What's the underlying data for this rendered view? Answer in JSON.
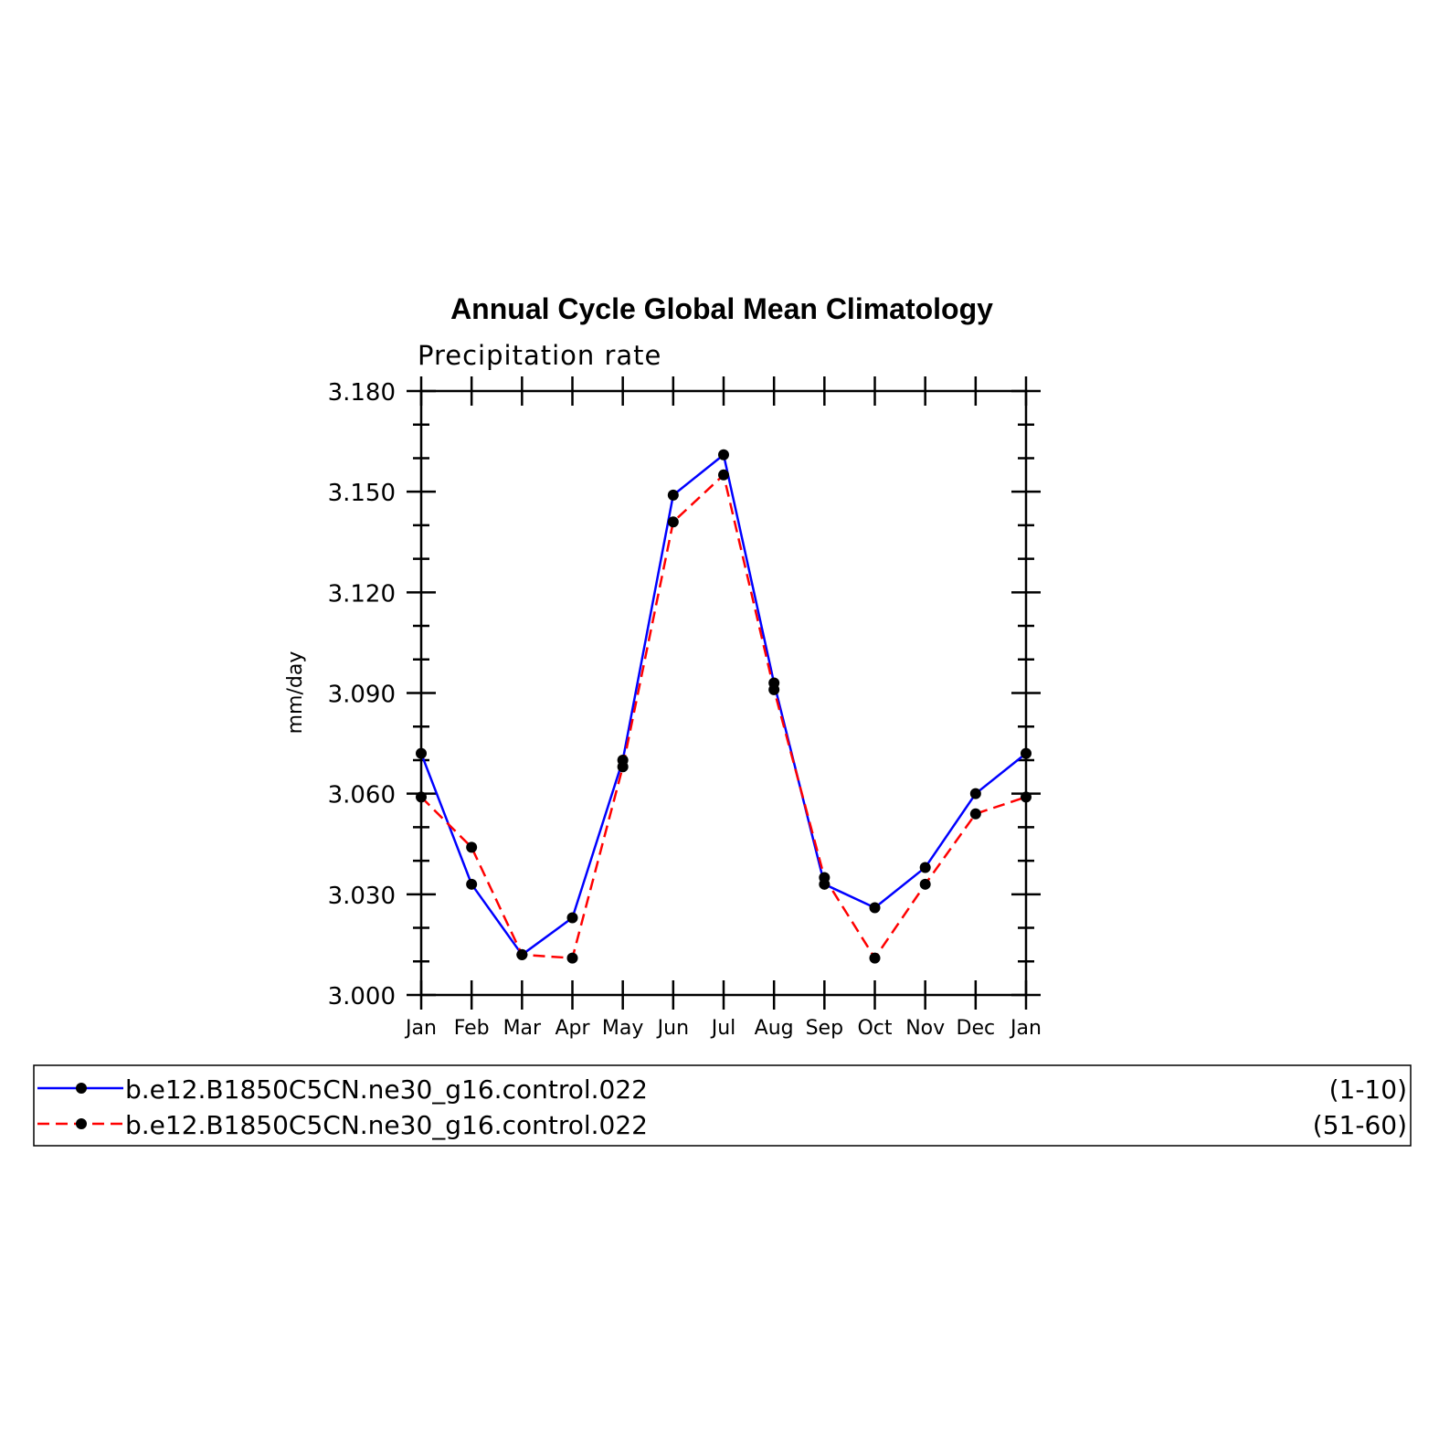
{
  "chart_data": {
    "type": "line",
    "title": "Annual Cycle Global Mean Climatology",
    "subtitle": "Precipitation rate",
    "xlabel": "",
    "ylabel": "mm/day",
    "categories": [
      "Jan",
      "Feb",
      "Mar",
      "Apr",
      "May",
      "Jun",
      "Jul",
      "Aug",
      "Sep",
      "Oct",
      "Nov",
      "Dec",
      "Jan"
    ],
    "ylim": [
      3.0,
      3.18
    ],
    "yticks": [
      "3.000",
      "3.030",
      "3.060",
      "3.090",
      "3.120",
      "3.150",
      "3.180"
    ],
    "grid": false,
    "legend_position": "bottom",
    "series": [
      {
        "name": "b.e12.B1850C5CN.ne30_g16.control.022",
        "years": "(1-10)",
        "color": "#0000ff",
        "dashed": false,
        "values": [
          3.072,
          3.033,
          3.012,
          3.023,
          3.07,
          3.149,
          3.161,
          3.093,
          3.033,
          3.026,
          3.038,
          3.06,
          3.072
        ]
      },
      {
        "name": "b.e12.B1850C5CN.ne30_g16.control.022",
        "years": "(51-60)",
        "color": "#ff0000",
        "dashed": true,
        "values": [
          3.059,
          3.044,
          3.012,
          3.011,
          3.068,
          3.141,
          3.155,
          3.091,
          3.035,
          3.011,
          3.033,
          3.054,
          3.059
        ]
      }
    ]
  }
}
